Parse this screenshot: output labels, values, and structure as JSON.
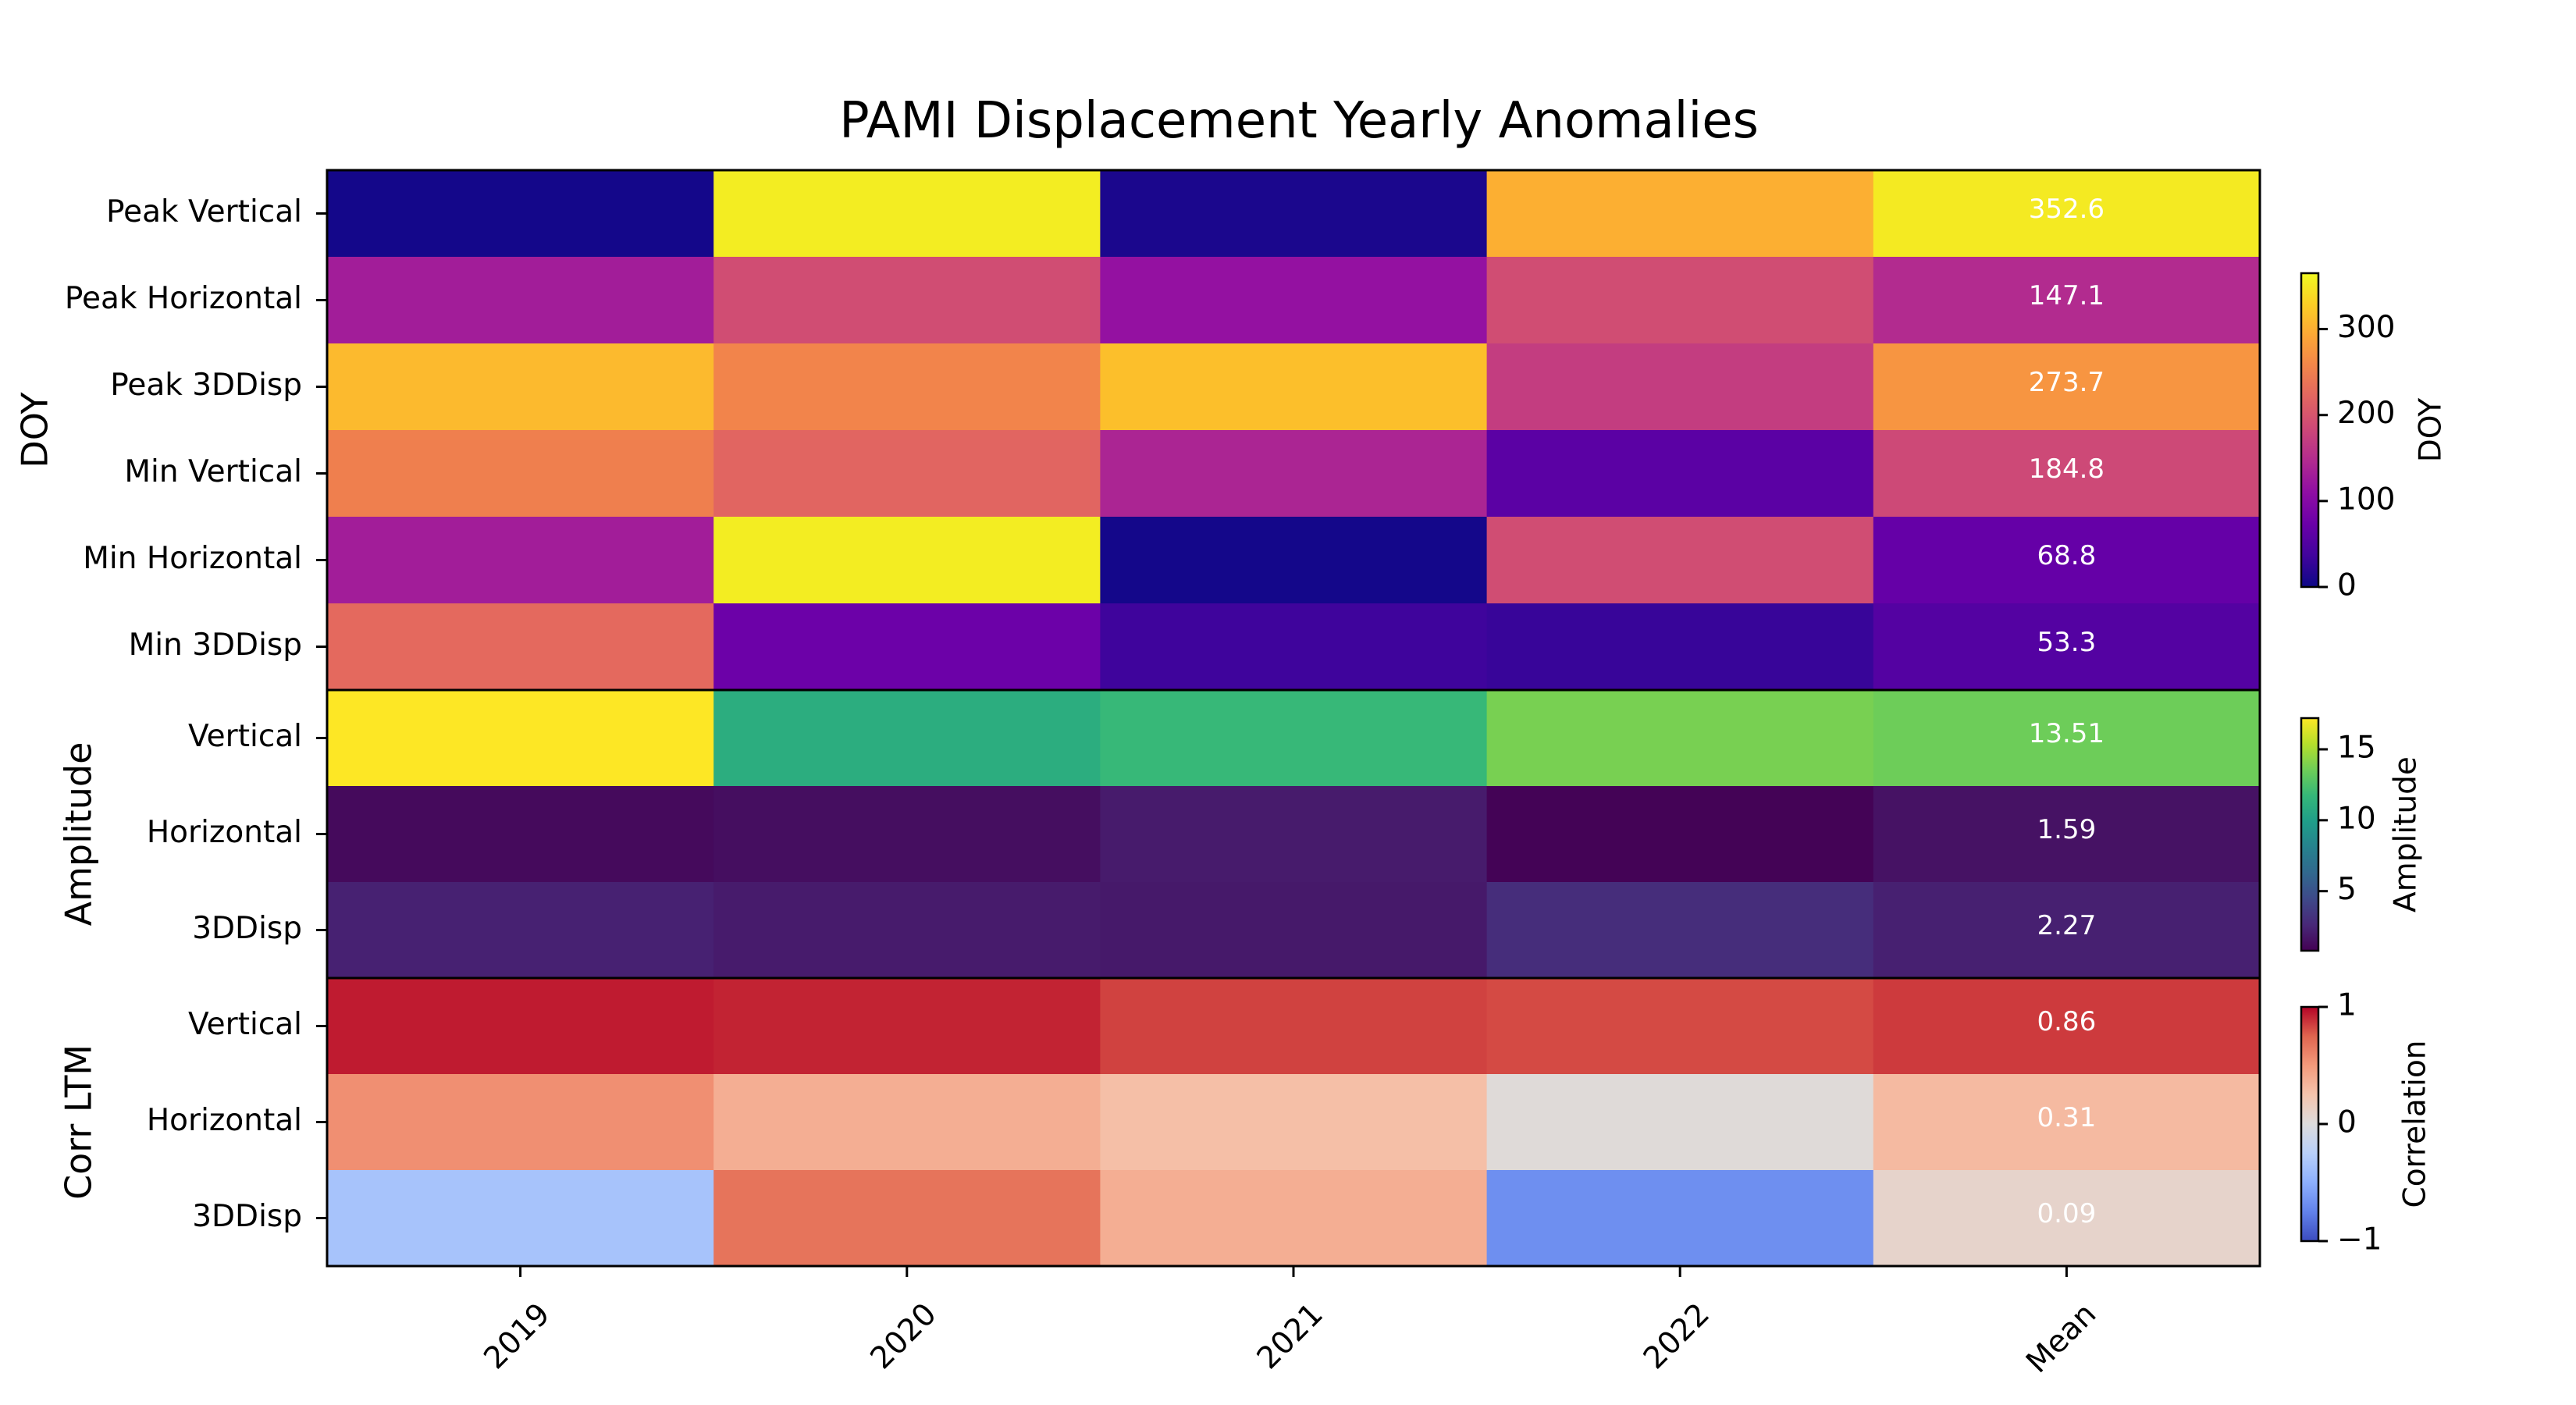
{
  "chart_data": {
    "type": "heatmap",
    "title": "PAMI Displacement Yearly Anomalies",
    "columns": [
      "2019",
      "2020",
      "2021",
      "2022",
      "Mean"
    ],
    "groups": [
      {
        "label": "DOY",
        "colorbar_label": "DOY",
        "colormap": "plasma",
        "range": [
          0,
          365
        ],
        "ticks": [
          "0",
          "100",
          "200",
          "300"
        ],
        "tick_values": [
          0,
          100,
          200,
          300
        ],
        "rows": [
          {
            "label": "Peak Vertical",
            "values": [
              5,
              355,
              10,
              300,
              352.6
            ],
            "mean_label": "352.6"
          },
          {
            "label": "Peak Horizontal",
            "values": [
              130,
              190,
              115,
              190,
              147.1
            ],
            "mean_label": "147.1"
          },
          {
            "label": "Peak 3DDisp",
            "values": [
              310,
              255,
              315,
              170,
              273.7
            ],
            "mean_label": "273.7"
          },
          {
            "label": "Min Vertical",
            "values": [
              250,
              220,
              140,
              60,
              184.8
            ],
            "mean_label": "184.8"
          },
          {
            "label": "Min Horizontal",
            "values": [
              130,
              355,
              5,
              190,
              68.8
            ],
            "mean_label": "68.8"
          },
          {
            "label": "Min 3DDisp",
            "values": [
              225,
              75,
              35,
              30,
              53.3
            ],
            "mean_label": "53.3"
          }
        ]
      },
      {
        "label": "Amplitude",
        "colorbar_label": "Amplitude",
        "colormap": "viridis",
        "range": [
          0.8,
          17.2
        ],
        "ticks": [
          "5",
          "10",
          "15"
        ],
        "tick_values": [
          5,
          10,
          15
        ],
        "rows": [
          {
            "label": "Vertical",
            "values": [
              17.2,
              11.0,
              11.8,
              13.8,
              13.51
            ],
            "mean_label": "13.51"
          },
          {
            "label": "Horizontal",
            "values": [
              1.2,
              1.4,
              2.0,
              0.9,
              1.59
            ],
            "mean_label": "1.59"
          },
          {
            "label": "3DDisp",
            "values": [
              2.3,
              2.0,
              1.9,
              2.9,
              2.27
            ],
            "mean_label": "2.27"
          }
        ]
      },
      {
        "label": "Corr LTM",
        "colorbar_label": "Correlation",
        "colormap": "coolwarm",
        "range": [
          -1,
          1
        ],
        "ticks": [
          "−1",
          "0",
          "1"
        ],
        "tick_values": [
          -1,
          0,
          1
        ],
        "rows": [
          {
            "label": "Vertical",
            "values": [
              0.94,
              0.92,
              0.84,
              0.82,
              0.86
            ],
            "mean_label": "0.86"
          },
          {
            "label": "Horizontal",
            "values": [
              0.55,
              0.38,
              0.28,
              0.02,
              0.31
            ],
            "mean_label": "0.31"
          },
          {
            "label": "3DDisp",
            "values": [
              -0.35,
              0.68,
              0.38,
              -0.68,
              0.09
            ],
            "mean_label": "0.09"
          }
        ]
      }
    ]
  }
}
